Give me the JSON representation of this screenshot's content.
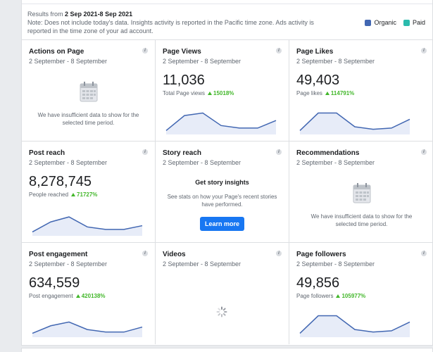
{
  "header": {
    "results_prefix": "Results from",
    "date_range": "2 Sep 2021-8 Sep 2021",
    "note": "Note: Does not include today's data. Insights activity is reported in the Pacific time zone. Ads activity is reported in the time zone of your ad account.",
    "legend": [
      {
        "label": "Organic",
        "color": "#4267b2"
      },
      {
        "label": "Paid",
        "color": "#2bbbad"
      }
    ]
  },
  "cards": {
    "actions_on_page": {
      "title": "Actions on Page",
      "date": "2 September - 8 September",
      "message": "We have insufficient data to show for the selected time period."
    },
    "page_views": {
      "title": "Page Views",
      "date": "2 September - 8 September",
      "value": "11,036",
      "sub_label": "Total Page views",
      "change": "15018%",
      "trend": [
        2,
        14,
        16,
        6,
        4,
        4,
        10
      ]
    },
    "page_likes": {
      "title": "Page Likes",
      "date": "2 September - 8 September",
      "value": "49,403",
      "sub_label": "Page likes",
      "change": "114791%",
      "trend": [
        2,
        16,
        16,
        5,
        3,
        4,
        11
      ]
    },
    "post_reach": {
      "title": "Post reach",
      "date": "2 September - 8 September",
      "value": "8,278,745",
      "sub_label": "People reached",
      "change": "71727%",
      "trend": [
        2,
        10,
        14,
        6,
        4,
        4,
        7
      ]
    },
    "story_reach": {
      "title": "Story reach",
      "date": "2 September - 8 September",
      "heading": "Get story insights",
      "message": "See stats on how your Page's recent stories have performed.",
      "button": "Learn more"
    },
    "recommendations": {
      "title": "Recommendations",
      "date": "2 September - 8 September",
      "message": "We have insufficient data to show for the selected time period."
    },
    "post_engagement": {
      "title": "Post engagement",
      "date": "2 September - 8 September",
      "value": "634,559",
      "sub_label": "Post engagement",
      "change": "420138%",
      "trend": [
        2,
        8,
        11,
        5,
        3,
        3,
        7
      ]
    },
    "videos": {
      "title": "Videos",
      "date": "2 September - 8 September"
    },
    "page_followers": {
      "title": "Page followers",
      "date": "2 September - 8 September",
      "value": "49,856",
      "sub_label": "Page followers",
      "change": "105977%",
      "trend": [
        2,
        16,
        16,
        5,
        3,
        4,
        11
      ]
    }
  }
}
